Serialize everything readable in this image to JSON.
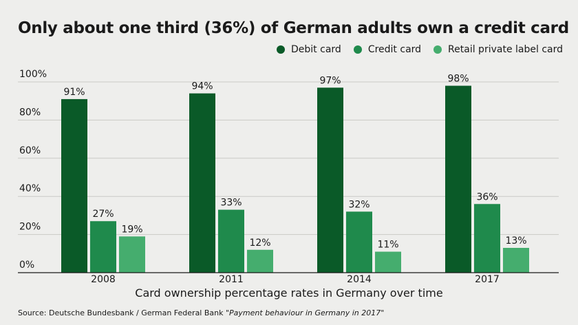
{
  "chart_data": {
    "type": "bar",
    "title": "Only about one third (36%) of German adults own a credit card",
    "xlabel": "Card ownership percentage rates in Germany over time",
    "ylabel": "",
    "categories": [
      "2008",
      "2011",
      "2014",
      "2017"
    ],
    "series": [
      {
        "name": "Debit card",
        "color": "#0a5a28",
        "values": [
          91,
          94,
          97,
          98
        ],
        "labels": [
          "91%",
          "94%",
          "97%",
          "98%"
        ]
      },
      {
        "name": "Credit card",
        "color": "#1f8a4c",
        "values": [
          27,
          33,
          32,
          36
        ],
        "labels": [
          "27%",
          "33%",
          "32%",
          "36%"
        ]
      },
      {
        "name": "Retail private label card",
        "color": "#45ad6e",
        "values": [
          19,
          12,
          11,
          13
        ],
        "labels": [
          "19%",
          "12%",
          "11%",
          "13%"
        ]
      }
    ],
    "ylim": [
      0,
      100
    ],
    "yticks": [
      0,
      20,
      40,
      60,
      80,
      100
    ],
    "ytick_labels": [
      "0%",
      "20%",
      "40%",
      "60%",
      "80%",
      "100%"
    ],
    "grid": true,
    "legend_position": "top-right"
  },
  "source": {
    "prefix": "Source: Deutsche Bundesbank / German Federal Bank ",
    "publication": "\"Payment behaviour in Germany in 2017\""
  }
}
